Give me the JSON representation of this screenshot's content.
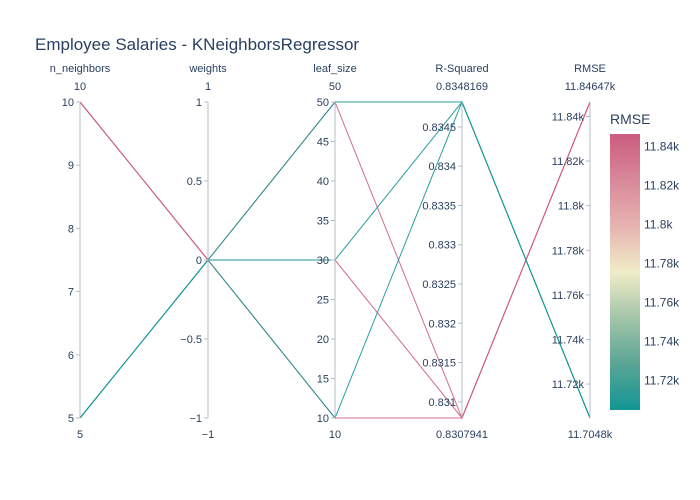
{
  "chart_data": {
    "type": "parcoords",
    "title": "Employee Salaries - KNeighborsRegressor",
    "dimensions": [
      {
        "label": "n_neighbors",
        "range": [
          5,
          10
        ],
        "tickvals": [
          5,
          6,
          7,
          8,
          9,
          10
        ],
        "ticktext": [
          "5",
          "6",
          "7",
          "8",
          "9",
          "10"
        ],
        "min_label": "5",
        "max_label": "10"
      },
      {
        "label": "weights",
        "range": [
          -1,
          1
        ],
        "tickvals": [
          -1,
          -0.5,
          0,
          0.5,
          1
        ],
        "ticktext": [
          "−1",
          "−0.5",
          "0",
          "0.5",
          "1"
        ],
        "min_label": "−1",
        "max_label": "1"
      },
      {
        "label": "leaf_size",
        "range": [
          10,
          50
        ],
        "tickvals": [
          10,
          15,
          20,
          25,
          30,
          35,
          40,
          45,
          50
        ],
        "ticktext": [
          "10",
          "15",
          "20",
          "25",
          "30",
          "35",
          "40",
          "45",
          "50"
        ],
        "min_label": "10",
        "max_label": "50"
      },
      {
        "label": "R-Squared",
        "range": [
          0.8307941,
          0.8348169
        ],
        "tickvals": [
          0.831,
          0.8315,
          0.832,
          0.8325,
          0.833,
          0.8335,
          0.834,
          0.8345
        ],
        "ticktext": [
          "0.831",
          "0.8315",
          "0.832",
          "0.8325",
          "0.833",
          "0.8335",
          "0.834",
          "0.8345"
        ],
        "min_label": "0.8307941",
        "max_label": "0.8348169"
      },
      {
        "label": "RMSE",
        "range": [
          11704.8,
          11846.47
        ],
        "tickvals": [
          11720,
          11740,
          11760,
          11780,
          11800,
          11820,
          11840
        ],
        "ticktext": [
          "11.72k",
          "11.74k",
          "11.76k",
          "11.78k",
          "11.8k",
          "11.82k",
          "11.84k"
        ],
        "min_label": "11.7048k",
        "max_label": "11.84647k"
      }
    ],
    "rows": [
      [
        10,
        0,
        50,
        0.8307941,
        11846.47
      ],
      [
        10,
        0,
        30,
        0.8307941,
        11846.47
      ],
      [
        10,
        0,
        10,
        0.8307941,
        11846.47
      ],
      [
        5,
        0,
        50,
        0.8348169,
        11704.8
      ],
      [
        5,
        0,
        30,
        0.8348169,
        11704.8
      ],
      [
        5,
        0,
        10,
        0.8348169,
        11704.8
      ]
    ],
    "colorbar": {
      "title": "RMSE",
      "range": [
        11704.8,
        11846.47
      ],
      "tickvals": [
        11720,
        11740,
        11760,
        11780,
        11800,
        11820,
        11840
      ],
      "ticktext": [
        "11.72k",
        "11.74k",
        "11.76k",
        "11.78k",
        "11.8k",
        "11.82k",
        "11.84k"
      ],
      "colorscale": [
        "#008080",
        "#70a494",
        "#b4c8a8",
        "#f6edbd",
        "#edbb8a",
        "#de8a5a",
        "#ca562c"
      ]
    },
    "line_colorscale": [
      "#139593",
      "#5aa596",
      "#a3c5a8",
      "#f1ecc8",
      "#e6b3b0",
      "#d8889a",
      "#cc5c7e"
    ]
  }
}
